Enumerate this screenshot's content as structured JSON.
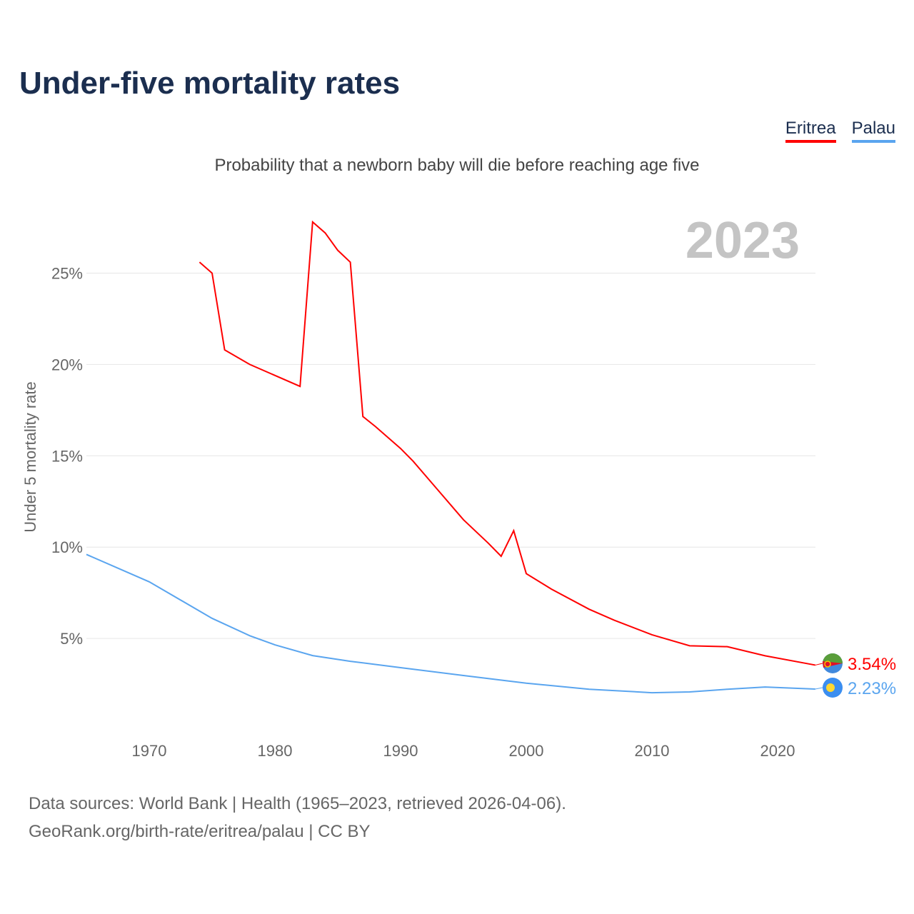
{
  "title": "Under-five mortality rates",
  "subtitle": "Probability that a newborn baby will die before reaching age five",
  "source_line1": "Data sources: World Bank | Health (1965–2023, retrieved 2026-04-06).",
  "source_line2": "GeoRank.org/birth-rate/eritrea/palau | CC BY",
  "chart_data": {
    "type": "line",
    "title": "Under-five mortality rates",
    "ylabel": "Under 5 mortality rate",
    "xlabel": "",
    "year_label": "2023",
    "xlim": [
      1965,
      2023
    ],
    "ylim": [
      0,
      28
    ],
    "grid": true,
    "legend_position": "top-right",
    "x_ticks": [
      "1970",
      "1980",
      "1990",
      "2000",
      "2010",
      "2020"
    ],
    "y_ticks": [
      {
        "v": 5,
        "label": "5%"
      },
      {
        "v": 10,
        "label": "10%"
      },
      {
        "v": 15,
        "label": "15%"
      },
      {
        "v": 20,
        "label": "20%"
      },
      {
        "v": 25,
        "label": "25%"
      }
    ],
    "series": [
      {
        "name": "Eritrea",
        "color": "#ff0000",
        "end_label": "3.54%",
        "x": [
          1974,
          1975,
          1976,
          1978,
          1982,
          1983,
          1984,
          1985,
          1986,
          1987,
          1988,
          1990,
          1991,
          1993,
          1995,
          1997,
          1998,
          1999,
          2000,
          2002,
          2005,
          2007,
          2010,
          2013,
          2016,
          2019,
          2023
        ],
        "y": [
          25.6,
          25.0,
          20.8,
          20.0,
          18.8,
          27.8,
          27.2,
          26.25,
          25.6,
          17.15,
          16.6,
          15.4,
          14.7,
          13.1,
          11.5,
          10.2,
          9.5,
          10.9,
          8.55,
          7.7,
          6.6,
          6.0,
          5.2,
          4.6,
          4.55,
          4.05,
          3.54
        ]
      },
      {
        "name": "Palau",
        "color": "#5aa5ef",
        "end_label": "2.23%",
        "x": [
          1965,
          1970,
          1975,
          1978,
          1980,
          1983,
          1986,
          1990,
          1995,
          2000,
          2005,
          2010,
          2013,
          2016,
          2019,
          2023
        ],
        "y": [
          9.6,
          8.1,
          6.1,
          5.15,
          4.65,
          4.06,
          3.75,
          3.4,
          2.97,
          2.55,
          2.22,
          2.03,
          2.07,
          2.22,
          2.34,
          2.23
        ]
      }
    ]
  }
}
